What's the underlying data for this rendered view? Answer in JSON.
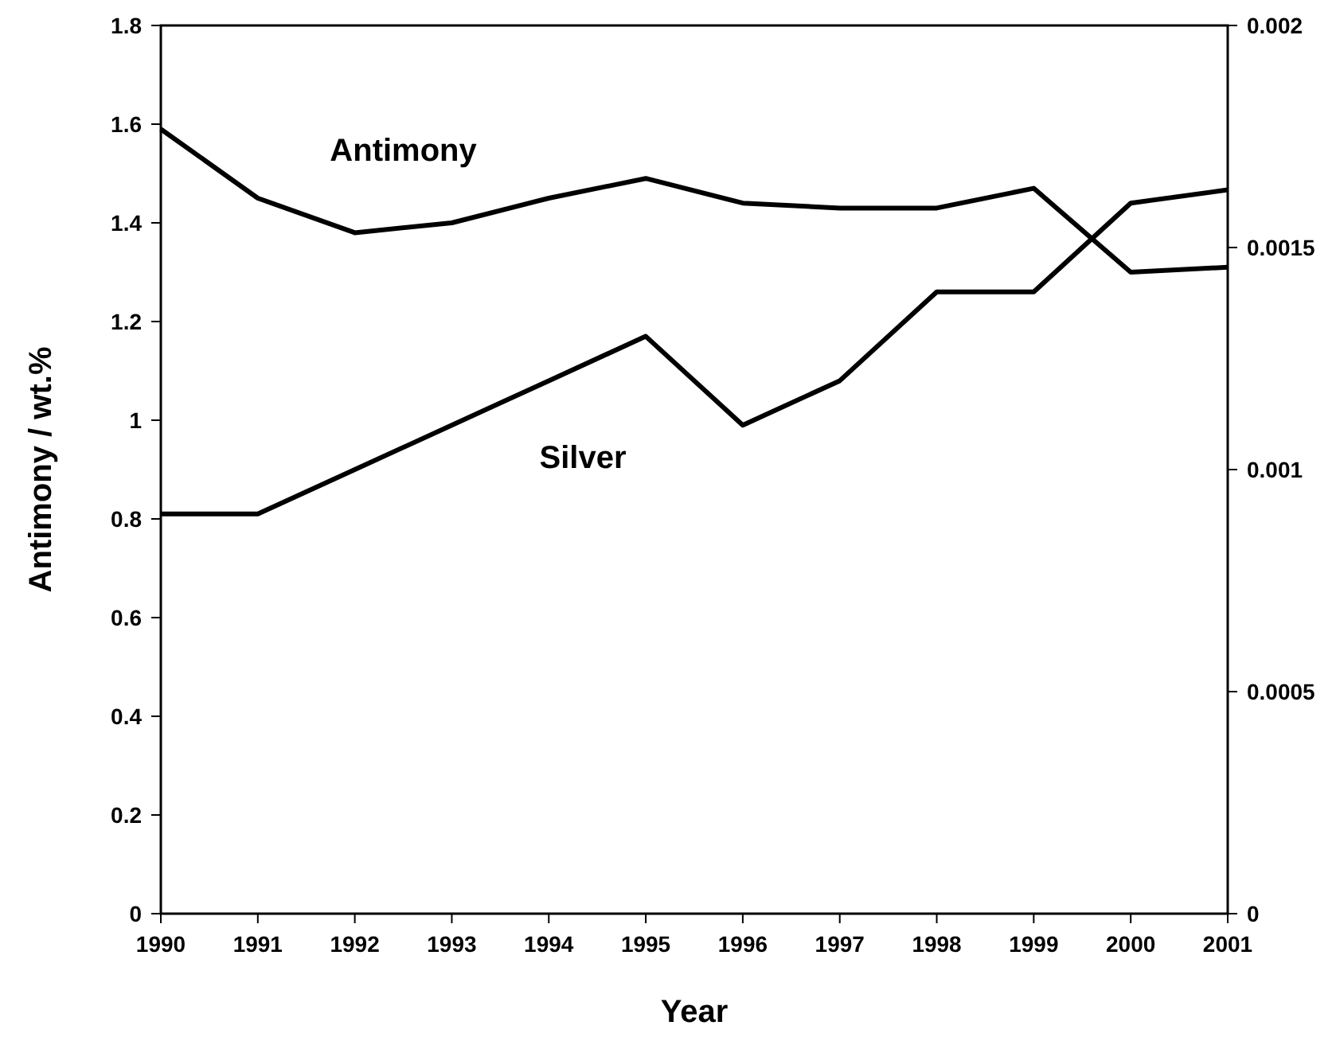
{
  "chart_data": {
    "type": "line",
    "xlabel": "Year",
    "ylabel": "Antimony / wt.%",
    "x": [
      1990,
      1991,
      1992,
      1993,
      1994,
      1995,
      1996,
      1997,
      1998,
      1999,
      2000,
      2001
    ],
    "xlim": [
      1990,
      2001
    ],
    "xticks": [
      1990,
      1991,
      1992,
      1993,
      1994,
      1995,
      1996,
      1997,
      1998,
      1999,
      2000,
      2001
    ],
    "ylim": [
      0,
      1.8
    ],
    "yticks": [
      0,
      0.2,
      0.4,
      0.6,
      0.8,
      1,
      1.2,
      1.4,
      1.6,
      1.8
    ],
    "y2lim": [
      0,
      0.002
    ],
    "y2ticks": [
      0,
      0.0005,
      0.001,
      0.0015,
      0.002
    ],
    "grid": false,
    "marker": "none",
    "line_style": "solid",
    "series": [
      {
        "name": "Antimony",
        "color": "#000000",
        "values": [
          1.59,
          1.45,
          1.38,
          1.4,
          1.45,
          1.49,
          1.44,
          1.43,
          1.43,
          1.47,
          1.3,
          1.31
        ]
      },
      {
        "name": "Silver",
        "color": "#000000",
        "axis": "y2",
        "values": [
          0.0009,
          0.0009,
          0.001,
          0.0011,
          0.0012,
          0.0013,
          0.0011,
          0.0012,
          0.0014,
          0.0014,
          0.0016,
          0.00163
        ]
      }
    ]
  }
}
